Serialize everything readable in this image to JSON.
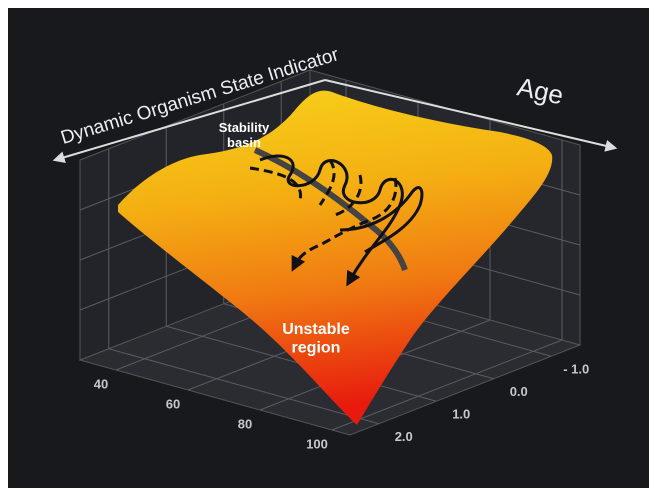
{
  "chart_data": {
    "type": "surface",
    "title": "Dynamic Organism State Indicator",
    "x_label": "Age",
    "annotations": [
      "Stability basin",
      "Unstable region"
    ],
    "xlim": [
      30,
      105
    ],
    "xticks": [
      40,
      60,
      80,
      100
    ],
    "ylim": [
      -1.5,
      2.5
    ],
    "yticks": [
      {
        "value": -1,
        "label": "- 1.0"
      },
      {
        "value": 0,
        "label": "0.0"
      },
      {
        "value": 1,
        "label": "1.0"
      },
      {
        "value": 2,
        "label": "2.0"
      }
    ],
    "grid": true
  }
}
